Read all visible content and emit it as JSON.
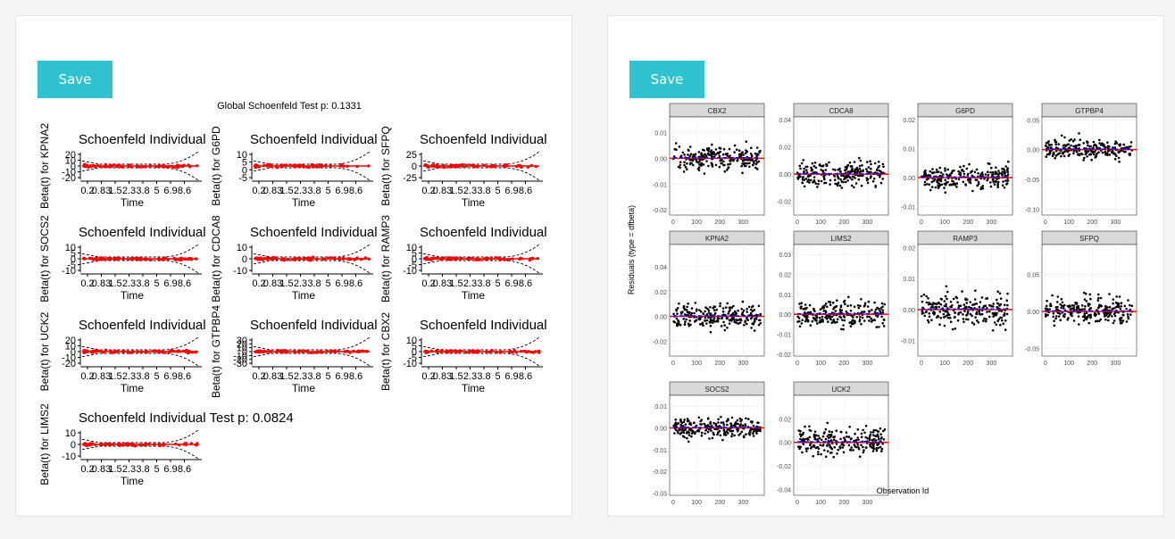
{
  "save_label": "Save",
  "left_panel": {
    "global_title": "Global Schoenfeld Test p: 0.1331",
    "x_axis_title": "Time",
    "x_tick_labels": [
      "0.2",
      "0.83",
      "1.5",
      "2.3",
      "3.8",
      "5",
      "6.9",
      "8.6"
    ],
    "point_color": "#ff0000",
    "plots": [
      {
        "title": "Schoenfeld Individual",
        "ylabel": "Beta(t) for KPNA2",
        "yticks": [
          "20",
          "10",
          "0",
          "-10",
          "-20"
        ]
      },
      {
        "title": "Schoenfeld Individual",
        "ylabel": "Beta(t) for G6PD",
        "yticks": [
          "10",
          "5",
          "0",
          "-5"
        ]
      },
      {
        "title": "Schoenfeld Individual",
        "ylabel": "Beta(t) for SFPQ",
        "yticks": [
          "25",
          "0",
          "-25"
        ]
      },
      {
        "title": "Schoenfeld Individual",
        "ylabel": "Beta(t) for SOCS2",
        "yticks": [
          "10",
          "5",
          "0",
          "-5",
          "-10"
        ]
      },
      {
        "title": "Schoenfeld Individual",
        "ylabel": "Beta(t) for CDCA8",
        "yticks": [
          "10",
          "0",
          "-10"
        ]
      },
      {
        "title": "Schoenfeld Individual",
        "ylabel": "Beta(t) for RAMP3",
        "yticks": [
          "10",
          "5",
          "0",
          "-5",
          "-10"
        ]
      },
      {
        "title": "Schoenfeld Individual",
        "ylabel": "Beta(t) for UCK2",
        "yticks": [
          "20",
          "10",
          "0",
          "-10",
          "-20"
        ]
      },
      {
        "title": "Schoenfeld Individual",
        "ylabel": "Beta(t) for GTPBP4",
        "yticks": [
          "30",
          "20",
          "10",
          "0",
          "-10",
          "-20",
          "-30"
        ]
      },
      {
        "title": "Schoenfeld Individual",
        "ylabel": "Beta(t) for CBX2",
        "yticks": [
          "10",
          "5",
          "0",
          "-5",
          "-10"
        ]
      },
      {
        "title": "Schoenfeld Individual Test p: 0.0824",
        "ylabel": "Beta(t) for LIMS2",
        "yticks": [
          "10",
          "0",
          "-10"
        ]
      }
    ]
  },
  "right_panel": {
    "y_axis_title": "Residuals (type = dfbeta)",
    "x_axis_title": "Observation Id",
    "x_tick_labels": [
      "0",
      "100",
      "200",
      "300"
    ],
    "x_range": [
      0,
      375
    ],
    "point_color": "#000000",
    "hline_color": "#ff0000",
    "smooth_color": "#0000ff",
    "strip_color": "#d9d9d9",
    "facets": [
      {
        "name": "CBX2",
        "yticks": [
          "0.01",
          "0.00",
          "-0.01",
          "-0.02"
        ],
        "ylim": [
          -0.022,
          0.016
        ]
      },
      {
        "name": "CDCA8",
        "yticks": [
          "0.04",
          "0.02",
          "0.00",
          "-0.02"
        ],
        "ylim": [
          -0.03,
          0.042
        ]
      },
      {
        "name": "G6PD",
        "yticks": [
          "0.02",
          "0.01",
          "0.00",
          "-0.01"
        ],
        "ylim": [
          -0.013,
          0.021
        ]
      },
      {
        "name": "GTPBP4",
        "yticks": [
          "0.05",
          "0.00",
          "-0.05",
          "-0.10"
        ],
        "ylim": [
          -0.11,
          0.055
        ]
      },
      {
        "name": "KPNA2",
        "yticks": [
          "0.04",
          "0.02",
          "0.00",
          "-0.02"
        ],
        "ylim": [
          -0.032,
          0.058
        ]
      },
      {
        "name": "LIMS2",
        "yticks": [
          "0.03",
          "0.02",
          "0.01",
          "0.00",
          "-0.01",
          "-0.02"
        ],
        "ylim": [
          -0.021,
          0.035
        ]
      },
      {
        "name": "RAMP3",
        "yticks": [
          "0.02",
          "0.01",
          "0.00",
          "-0.01"
        ],
        "ylim": [
          -0.015,
          0.021
        ]
      },
      {
        "name": "SFPQ",
        "yticks": [
          "0.05",
          "0.00",
          "-0.05"
        ],
        "ylim": [
          -0.06,
          0.09
        ]
      },
      {
        "name": "SOCS2",
        "yticks": [
          "0.01",
          "0.00",
          "-0.01",
          "-0.02",
          "-0.03"
        ],
        "ylim": [
          -0.031,
          0.015
        ]
      },
      {
        "name": "UCK2",
        "yticks": [
          "0.02",
          "0.00",
          "-0.02",
          "-0.04"
        ],
        "ylim": [
          -0.045,
          0.04
        ]
      }
    ]
  }
}
